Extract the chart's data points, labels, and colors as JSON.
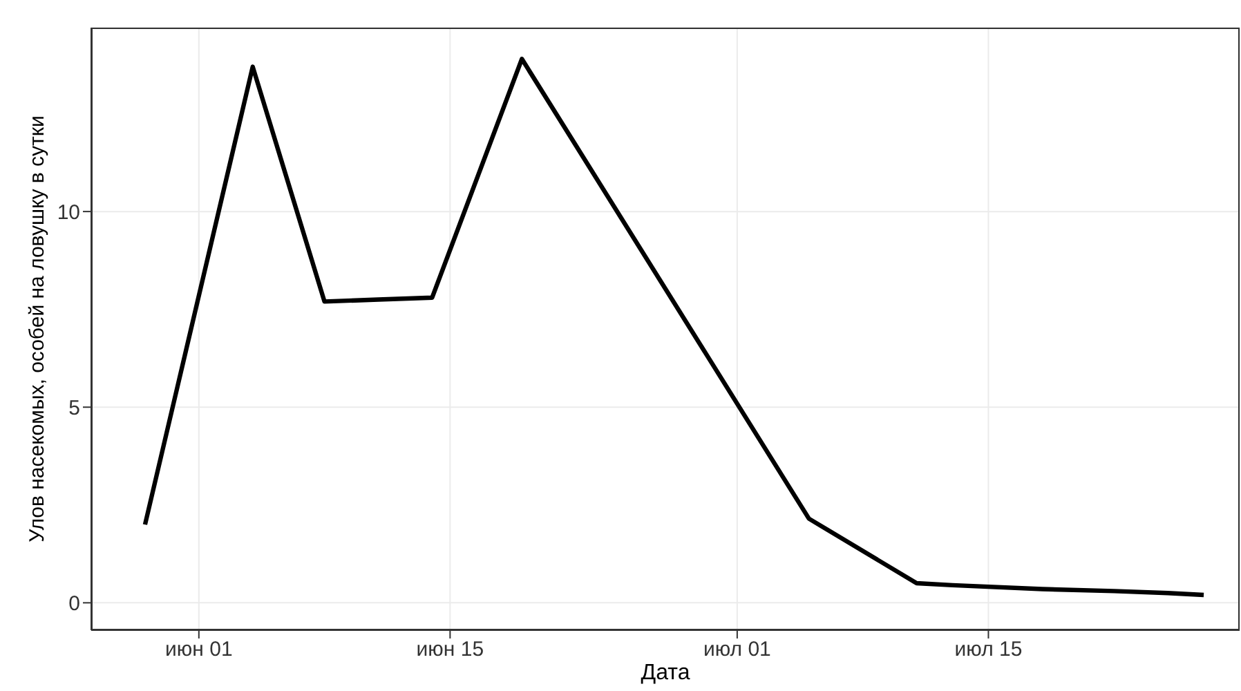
{
  "chart_data": {
    "type": "line",
    "xlabel": "Дата",
    "ylabel": "Улов насекомых, особей на ловушку в сутки",
    "x": [
      "--05-29",
      "--06-04",
      "--06-08",
      "--06-11",
      "--06-14",
      "--06-19",
      "--07-05",
      "--07-11",
      "--07-13",
      "--07-18",
      "--07-22",
      "--07-25",
      "--07-27"
    ],
    "series": [
      {
        "color": "#000000",
        "values": [
          2.0,
          13.7,
          7.7,
          7.75,
          7.8,
          13.9,
          2.15,
          0.5,
          0.45,
          0.35,
          0.3,
          0.25,
          0.2
        ]
      }
    ],
    "xlim": [
      "--05-26",
      "--07-29"
    ],
    "xticks": [
      {
        "value": "--06-01",
        "label": "июн 01"
      },
      {
        "value": "--06-15",
        "label": "июн 15"
      },
      {
        "value": "--07-01",
        "label": "июл 01"
      },
      {
        "value": "--07-15",
        "label": "июл 15"
      }
    ],
    "ylim": [
      -0.7,
      14.7
    ],
    "yticks": [
      0,
      5,
      10
    ],
    "grid": true,
    "marker": "none",
    "line_style": "solid"
  }
}
